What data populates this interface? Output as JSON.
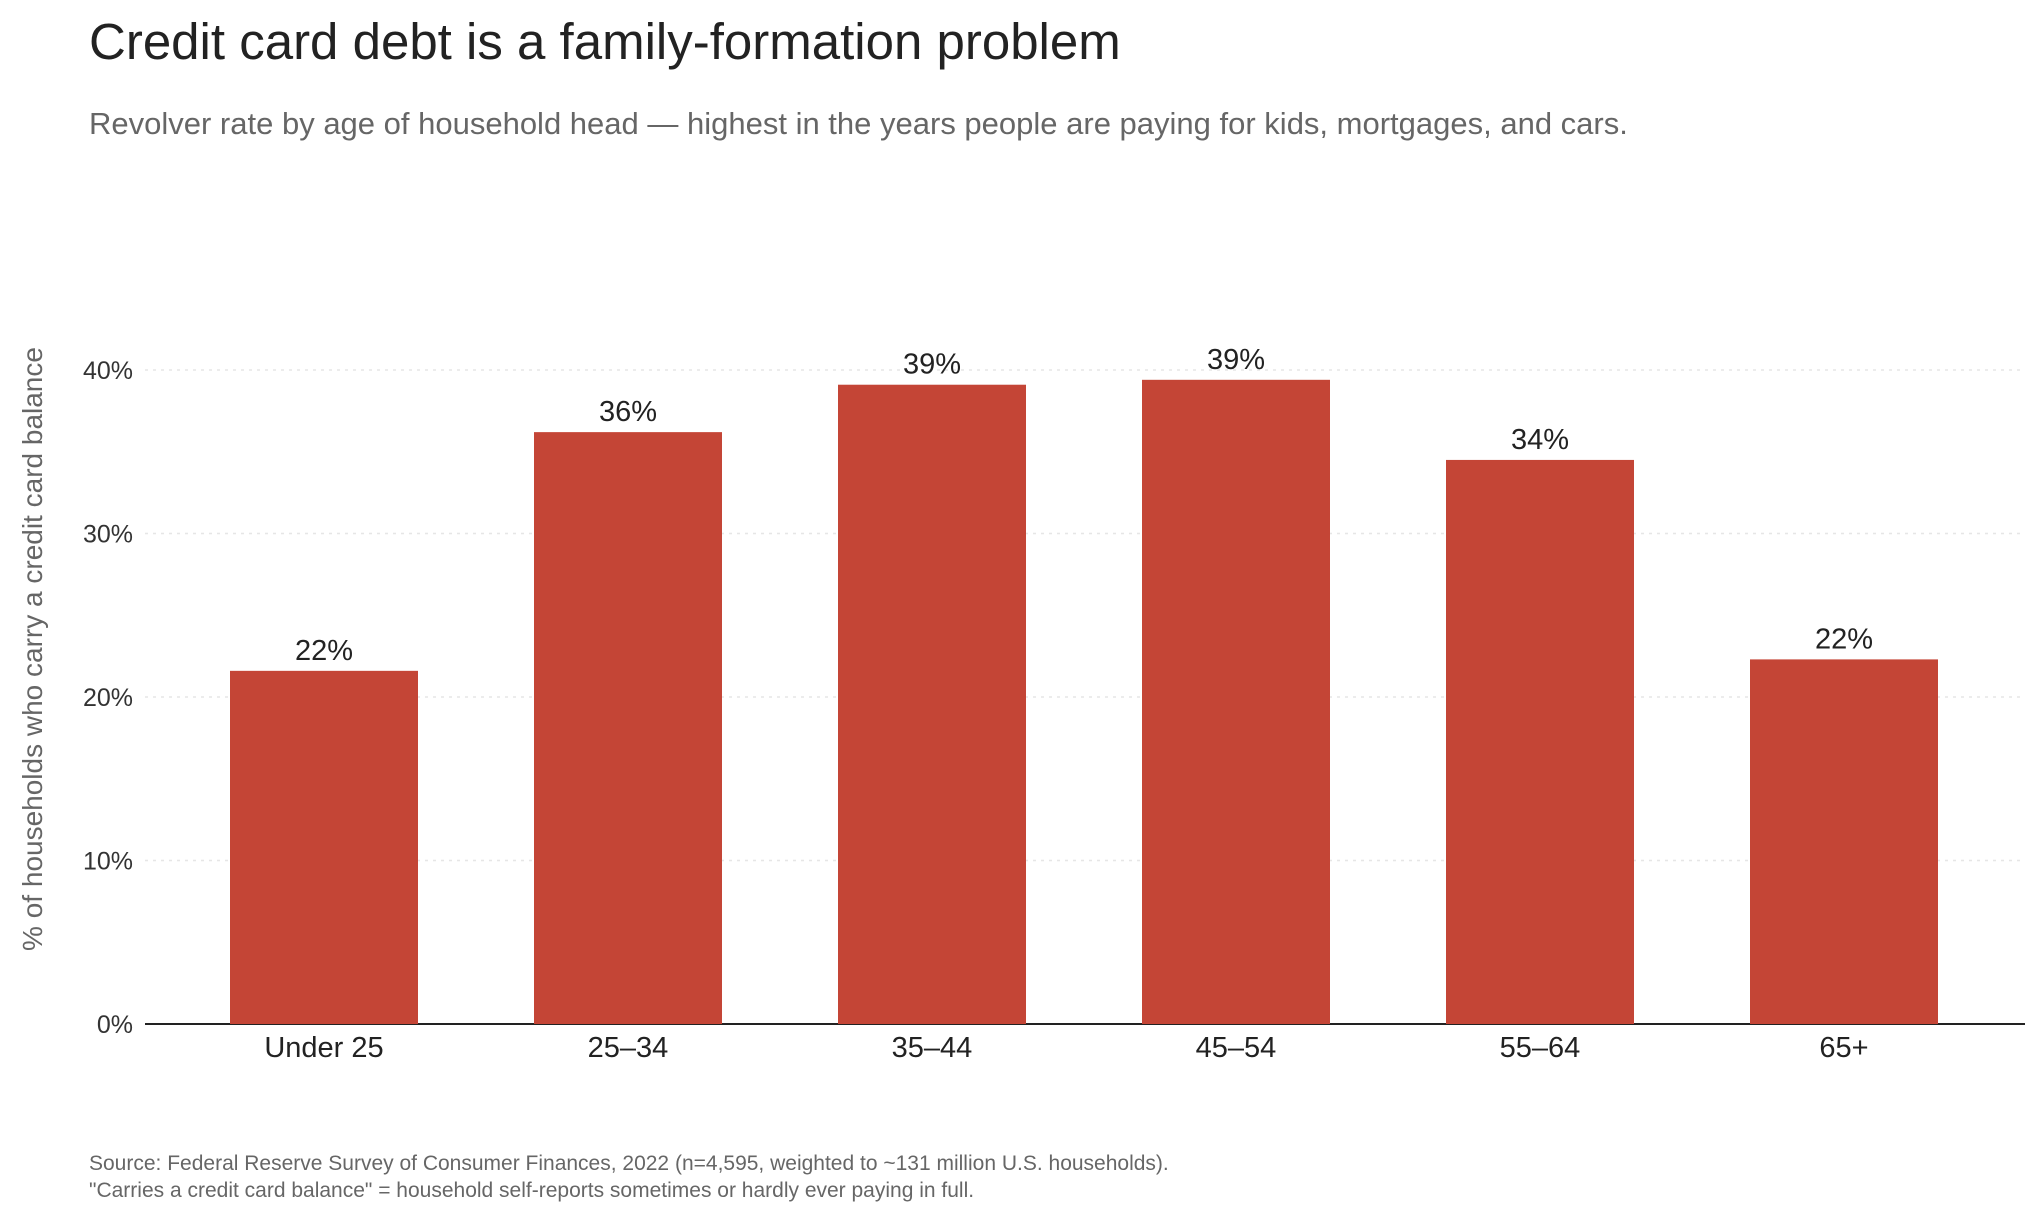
{
  "title": "Credit card debt is a family-formation problem",
  "subtitle": "Revolver rate by age of household head — highest in the years people are paying for kids, mortgages, and cars.",
  "footer": {
    "source": "Source: Federal Reserve Survey of Consumer Finances, 2022 (n=4,595, weighted to ~131 million U.S. households).",
    "note": "\"Carries a credit card balance\" = household self-reports sometimes or hardly ever paying in full."
  },
  "colors": {
    "bar": "#c44536",
    "grid": "#e6e6e6",
    "axis": "#222222"
  },
  "chart_data": {
    "type": "bar",
    "title": "Credit card debt is a family-formation problem",
    "ylabel": "% of households who carry a credit card balance",
    "xlabel": "",
    "categories": [
      "Under 25",
      "25–34",
      "35–44",
      "45–54",
      "55–64",
      "65+"
    ],
    "values": [
      21.6,
      36.2,
      39.1,
      39.4,
      34.5,
      22.3
    ],
    "data_labels": [
      "22%",
      "36%",
      "39%",
      "39%",
      "34%",
      "22%"
    ],
    "ylim": [
      0,
      40
    ],
    "yticks": [
      0,
      10,
      20,
      30,
      40
    ],
    "ytick_labels": [
      "0%",
      "10%",
      "20%",
      "30%",
      "40%"
    ],
    "grid": true,
    "legend": "none"
  }
}
